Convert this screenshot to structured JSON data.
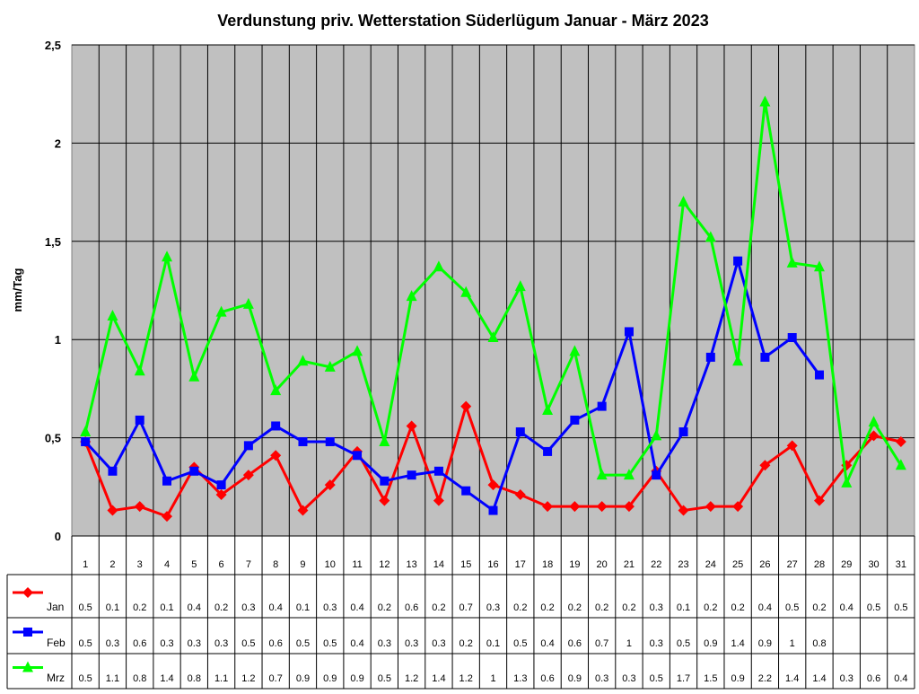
{
  "chart_data": {
    "type": "line",
    "title": "Verdunstung priv. Wetterstation Süderlügum Januar - März 2023",
    "xlabel": "",
    "ylabel": "mm/Tag",
    "ylim": [
      0,
      2.5
    ],
    "yticks": [
      "0",
      "0,5",
      "1",
      "1,5",
      "2",
      "2,5"
    ],
    "ytick_values": [
      0,
      0.5,
      1,
      1.5,
      2,
      2.5
    ],
    "grid": true,
    "legend": "data-table",
    "categories": [
      "1",
      "2",
      "3",
      "4",
      "5",
      "6",
      "7",
      "8",
      "9",
      "10",
      "11",
      "12",
      "13",
      "14",
      "15",
      "16",
      "17",
      "18",
      "19",
      "20",
      "21",
      "22",
      "23",
      "24",
      "25",
      "26",
      "27",
      "28",
      "29",
      "30",
      "31"
    ],
    "series": [
      {
        "name": "Jan",
        "color": "#FF0000",
        "marker": "diamond",
        "values": [
          0.48,
          0.13,
          0.15,
          0.1,
          0.35,
          0.21,
          0.31,
          0.41,
          0.13,
          0.26,
          0.43,
          0.18,
          0.56,
          0.18,
          0.66,
          0.26,
          0.21,
          0.15,
          0.15,
          0.15,
          0.15,
          0.33,
          0.13,
          0.15,
          0.15,
          0.36,
          0.46,
          0.18,
          0.36,
          0.51,
          0.48
        ],
        "table": [
          "0.5",
          "0.1",
          "0.2",
          "0.1",
          "0.4",
          "0.2",
          "0.3",
          "0.4",
          "0.1",
          "0.3",
          "0.4",
          "0.2",
          "0.6",
          "0.2",
          "0.7",
          "0.3",
          "0.2",
          "0.2",
          "0.2",
          "0.2",
          "0.2",
          "0.3",
          "0.1",
          "0.2",
          "0.2",
          "0.4",
          "0.5",
          "0.2",
          "0.4",
          "0.5",
          "0.5"
        ]
      },
      {
        "name": "Feb",
        "color": "#0000FF",
        "marker": "square",
        "values": [
          0.48,
          0.33,
          0.59,
          0.28,
          0.33,
          0.26,
          0.46,
          0.56,
          0.48,
          0.48,
          0.41,
          0.28,
          0.31,
          0.33,
          0.23,
          0.13,
          0.53,
          0.43,
          0.59,
          0.66,
          1.04,
          0.31,
          0.53,
          0.91,
          1.4,
          0.91,
          1.01,
          0.82,
          null,
          null,
          null
        ],
        "table": [
          "0.5",
          "0.3",
          "0.6",
          "0.3",
          "0.3",
          "0.3",
          "0.5",
          "0.6",
          "0.5",
          "0.5",
          "0.4",
          "0.3",
          "0.3",
          "0.3",
          "0.2",
          "0.1",
          "0.5",
          "0.4",
          "0.6",
          "0.7",
          "1",
          "0.3",
          "0.5",
          "0.9",
          "1.4",
          "0.9",
          "1",
          "0.8",
          "",
          "",
          ""
        ]
      },
      {
        "name": "Mrz",
        "color": "#00FF00",
        "marker": "triangle",
        "values": [
          0.53,
          1.12,
          0.84,
          1.42,
          0.81,
          1.14,
          1.18,
          0.74,
          0.89,
          0.86,
          0.94,
          0.48,
          1.22,
          1.37,
          1.24,
          1.01,
          1.27,
          0.64,
          0.94,
          0.31,
          0.31,
          0.51,
          1.7,
          1.52,
          0.89,
          2.21,
          1.39,
          1.37,
          0.27,
          0.58,
          0.36
        ],
        "table": [
          "0.5",
          "1.1",
          "0.8",
          "1.4",
          "0.8",
          "1.1",
          "1.2",
          "0.7",
          "0.9",
          "0.9",
          "0.9",
          "0.5",
          "1.2",
          "1.4",
          "1.2",
          "1",
          "1.3",
          "0.6",
          "0.9",
          "0.3",
          "0.3",
          "0.5",
          "1.7",
          "1.5",
          "0.9",
          "2.2",
          "1.4",
          "1.4",
          "0.3",
          "0.6",
          "0.4"
        ]
      }
    ],
    "plot_background": "#C0C0C0"
  }
}
